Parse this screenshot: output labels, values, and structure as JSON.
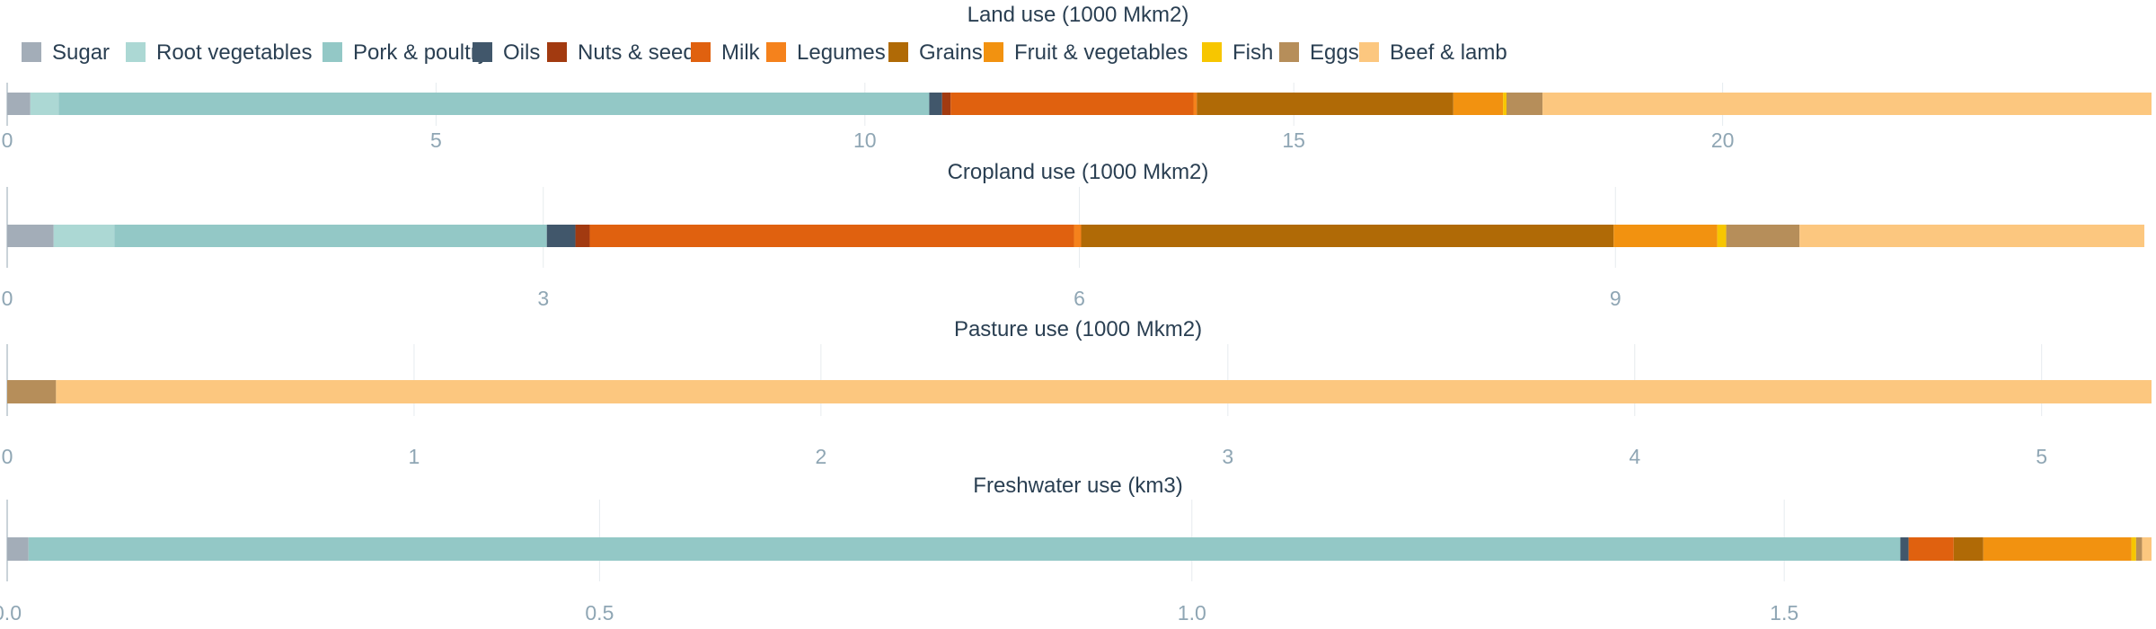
{
  "colors": {
    "Sugar": "#a3adb8",
    "Root vegetables": "#acd8d4",
    "Pork & poultry": "#93c8c6",
    "Oils": "#41576b",
    "Nuts & seeds": "#a23a10",
    "Milk": "#e0610f",
    "Legumes": "#f5821c",
    "Grains": "#b06a06",
    "Fruit & vegetables": "#f29210",
    "Fish": "#f7c600",
    "Eggs": "#b68e5a",
    "Beef & lamb": "#fcc77f"
  },
  "legend": [
    "Sugar",
    "Root vegetables",
    "Pork & poultry",
    "Oils",
    "Nuts & seeds",
    "Milk",
    "Legumes",
    "Grains",
    "Fruit & vegetables",
    "Fish",
    "Eggs",
    "Beef & lamb"
  ],
  "chart_data": [
    {
      "type": "bar",
      "orientation": "horizontal",
      "stacked": true,
      "title": "Land use (1000 Mkm2)",
      "xlim": [
        0,
        25
      ],
      "ticks": [
        0,
        5,
        10,
        15,
        20
      ],
      "tick_labels": [
        "0",
        "5",
        "10",
        "15",
        "20"
      ],
      "series": [
        {
          "name": "Sugar",
          "value": 0.27
        },
        {
          "name": "Root vegetables",
          "value": 0.33
        },
        {
          "name": "Pork & poultry",
          "value": 10.15
        },
        {
          "name": "Oils",
          "value": 0.15
        },
        {
          "name": "Nuts & seeds",
          "value": 0.1
        },
        {
          "name": "Milk",
          "value": 2.83
        },
        {
          "name": "Legumes",
          "value": 0.04
        },
        {
          "name": "Grains",
          "value": 2.99
        },
        {
          "name": "Fruit & vegetables",
          "value": 0.58
        },
        {
          "name": "Fish",
          "value": 0.04
        },
        {
          "name": "Eggs",
          "value": 0.42
        },
        {
          "name": "Beef & lamb",
          "value": 7.1
        }
      ]
    },
    {
      "type": "bar",
      "orientation": "horizontal",
      "stacked": true,
      "title": "Cropland use (1000 Mkm2)",
      "xlim": [
        0,
        12
      ],
      "ticks": [
        0,
        3,
        6,
        9
      ],
      "tick_labels": [
        "0",
        "3",
        "6",
        "9"
      ],
      "series": [
        {
          "name": "Sugar",
          "value": 0.26
        },
        {
          "name": "Root vegetables",
          "value": 0.34
        },
        {
          "name": "Pork & poultry",
          "value": 2.42
        },
        {
          "name": "Oils",
          "value": 0.16
        },
        {
          "name": "Nuts & seeds",
          "value": 0.08
        },
        {
          "name": "Milk",
          "value": 2.71
        },
        {
          "name": "Legumes",
          "value": 0.04
        },
        {
          "name": "Grains",
          "value": 2.98
        },
        {
          "name": "Fruit & vegetables",
          "value": 0.58
        },
        {
          "name": "Fish",
          "value": 0.05
        },
        {
          "name": "Eggs",
          "value": 0.41
        },
        {
          "name": "Beef & lamb",
          "value": 1.93
        }
      ]
    },
    {
      "type": "bar",
      "orientation": "horizontal",
      "stacked": true,
      "title": "Pasture use (1000 Mkm2)",
      "xlim": [
        0,
        5.27
      ],
      "ticks": [
        0,
        1,
        2,
        3,
        4,
        5
      ],
      "tick_labels": [
        "0",
        "1",
        "2",
        "3",
        "4",
        "5"
      ],
      "series": [
        {
          "name": "Eggs",
          "value": 0.12
        },
        {
          "name": "Beef & lamb",
          "value": 5.15
        }
      ]
    },
    {
      "type": "bar",
      "orientation": "horizontal",
      "stacked": true,
      "title": "Freshwater use (km3)",
      "xlim": [
        0,
        1.81
      ],
      "ticks": [
        0,
        0.5,
        1.0,
        1.5
      ],
      "tick_labels": [
        "0.0",
        "0.5",
        "1.0",
        "1.5"
      ],
      "series": [
        {
          "name": "Sugar",
          "value": 0.018
        },
        {
          "name": "Pork & poultry",
          "value": 1.58
        },
        {
          "name": "Oils",
          "value": 0.007
        },
        {
          "name": "Milk",
          "value": 0.038
        },
        {
          "name": "Grains",
          "value": 0.025
        },
        {
          "name": "Fruit & vegetables",
          "value": 0.125
        },
        {
          "name": "Fish",
          "value": 0.004
        },
        {
          "name": "Eggs",
          "value": 0.005
        },
        {
          "name": "Beef & lamb",
          "value": 0.008
        }
      ]
    }
  ]
}
